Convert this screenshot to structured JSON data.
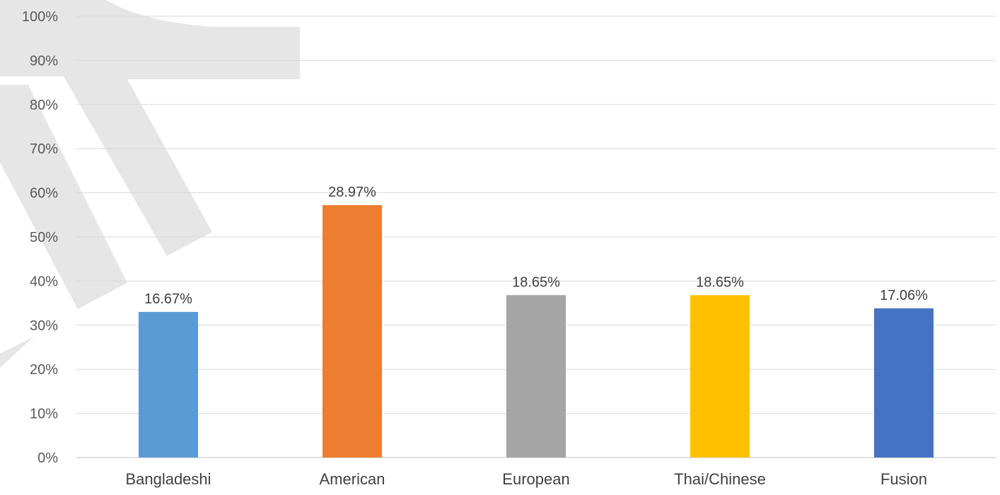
{
  "chart_data": {
    "type": "bar",
    "categories": [
      "Bangladeshi",
      "American",
      "European",
      "Thai/Chinese",
      "Fusion"
    ],
    "values": [
      33,
      57.2,
      36.8,
      36.8,
      33.8
    ],
    "data_labels": [
      "16.67%",
      "28.97%",
      "18.65%",
      "18.65%",
      "17.06%"
    ],
    "colors": [
      "#5B9BD5",
      "#ED7D31",
      "#A5A5A5",
      "#FFC000",
      "#4472C4"
    ],
    "ylim": [
      0,
      100
    ],
    "yticks": [
      "0%",
      "10%",
      "20%",
      "30%",
      "40%",
      "50%",
      "60%",
      "70%",
      "80%",
      "90%",
      "100%"
    ],
    "grid": true,
    "legend": "none",
    "watermark_color": "#E6E6E6"
  }
}
